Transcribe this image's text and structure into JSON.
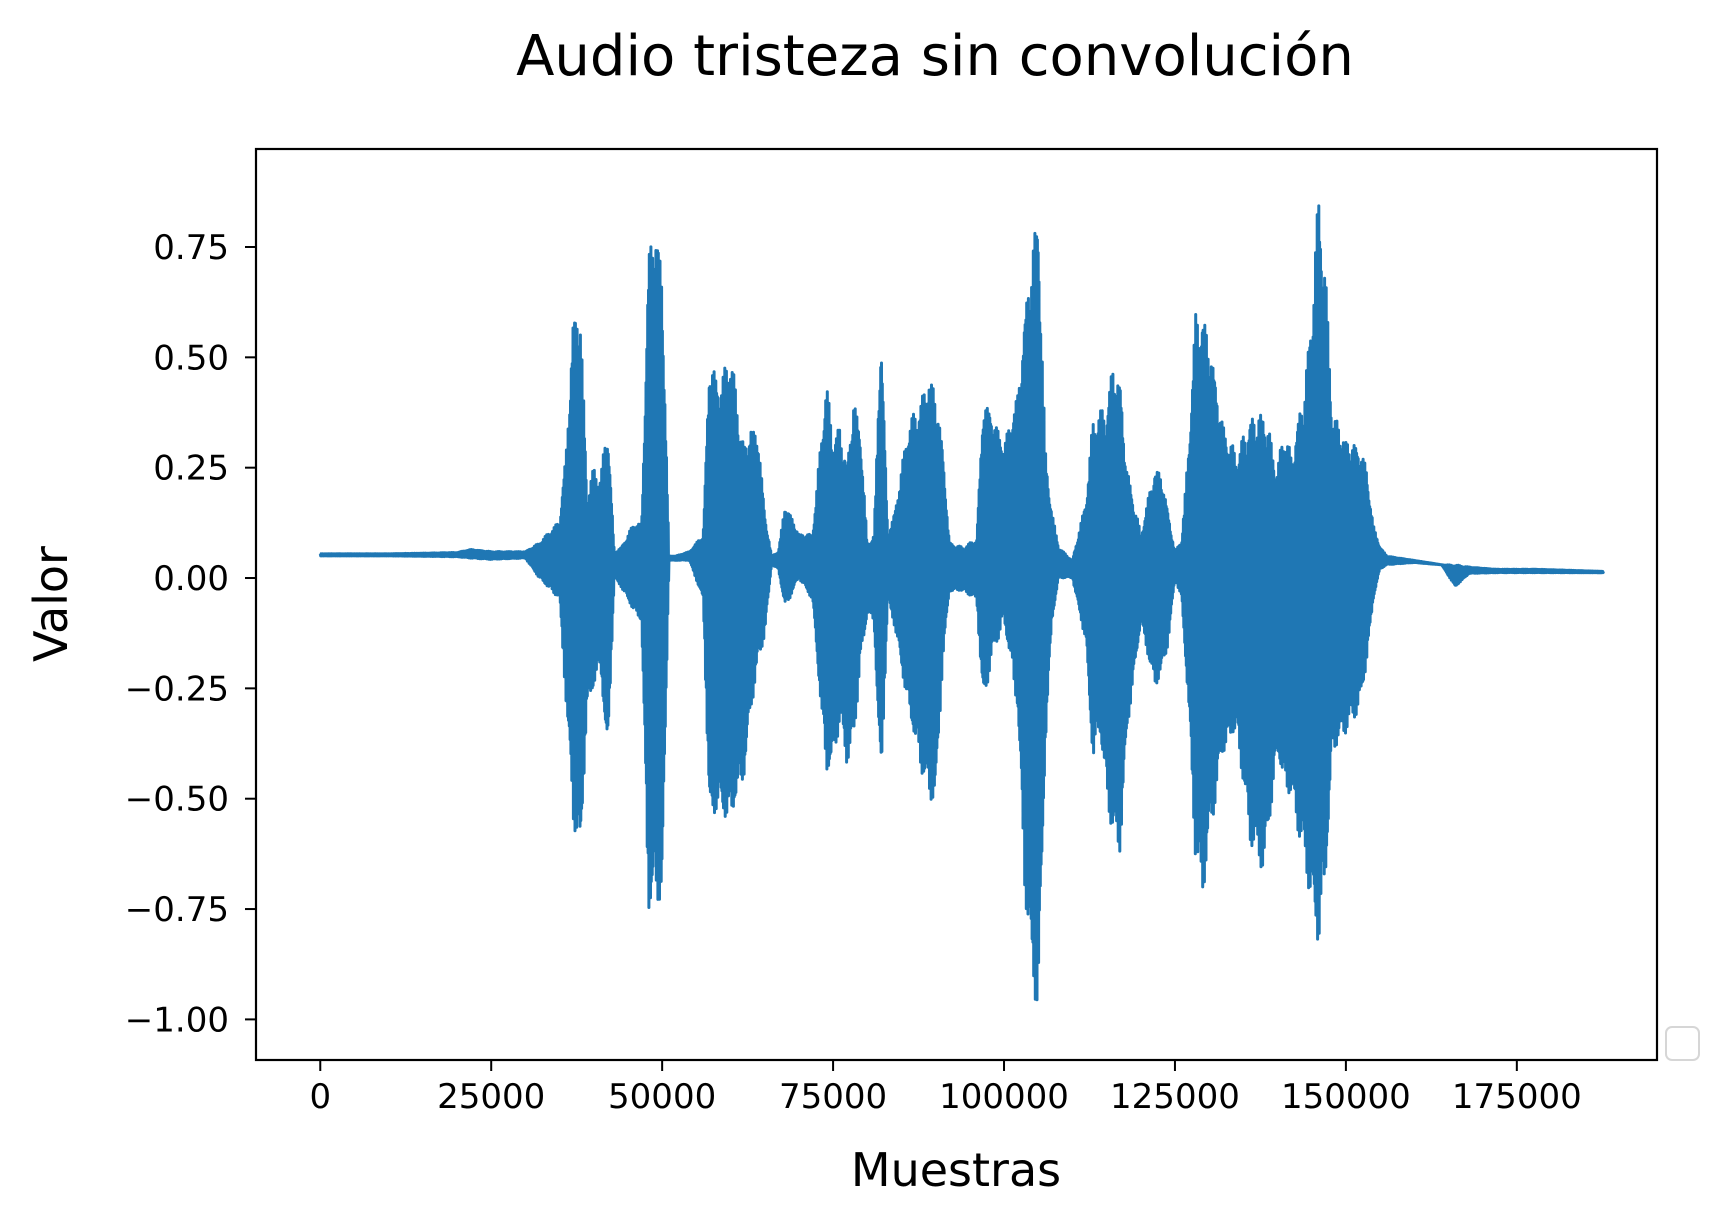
{
  "chart_data": {
    "type": "line",
    "title": "Audio tristeza sin convolución",
    "xlabel": "Muestras",
    "ylabel": "Valor",
    "xlim": [
      -9400,
      195500
    ],
    "ylim": [
      -1.092,
      0.972
    ],
    "xticks": [
      0,
      25000,
      50000,
      75000,
      100000,
      125000,
      150000,
      175000
    ],
    "xtick_labels": [
      "0",
      "25000",
      "50000",
      "75000",
      "100000",
      "125000",
      "150000",
      "175000"
    ],
    "yticks": [
      0.75,
      0.5,
      0.25,
      0.0,
      -0.25,
      -0.5,
      -0.75,
      -1.0
    ],
    "ytick_labels": [
      "0.75",
      "0.50",
      "0.25",
      "0.00",
      "−0.25",
      "−0.50",
      "−0.75",
      "−1.00"
    ],
    "grid": false,
    "legend": "empty box at lower-right",
    "line_color": "#1f77b4",
    "series": [
      {
        "x": [
          0,
          10000,
          20000,
          22000,
          25000,
          30000,
          32000,
          35000,
          36000,
          37000,
          38000,
          39000,
          40000,
          41000,
          42000,
          43000,
          44000,
          46000,
          47000,
          48000,
          49000,
          50000,
          51000,
          52000,
          54000,
          56000,
          57000,
          58000,
          59000,
          60000,
          61000,
          62000,
          63000,
          64000,
          65000,
          66000,
          67000,
          68000,
          70000,
          72000,
          74000,
          75000,
          76000,
          77000,
          78000,
          79000,
          80000,
          81000,
          82000,
          83000,
          84000,
          86000,
          88000,
          89000,
          90000,
          91000,
          92000,
          94000,
          96000,
          97000,
          98000,
          100000,
          102000,
          103000,
          104000,
          105000,
          106000,
          107000,
          108000,
          110000,
          112000,
          113000,
          114000,
          115000,
          116000,
          117000,
          118000,
          120000,
          122000,
          123000,
          124000,
          125000,
          126000,
          127000,
          128000,
          129000,
          130000,
          131000,
          132000,
          134000,
          136000,
          138000,
          140000,
          141000,
          142000,
          144000,
          145000,
          146000,
          147000,
          148000,
          150000,
          152000,
          153000,
          154000,
          155000,
          156000,
          160000,
          164000,
          166000,
          168000,
          172000,
          178000,
          182000,
          187700
        ],
        "upper": [
          0.055,
          0.055,
          0.058,
          0.065,
          0.06,
          0.06,
          0.08,
          0.13,
          0.3,
          0.6,
          0.63,
          0.2,
          0.25,
          0.23,
          0.36,
          0.06,
          0.07,
          0.13,
          0.12,
          0.73,
          0.83,
          0.7,
          0.05,
          0.05,
          0.06,
          0.1,
          0.53,
          0.45,
          0.47,
          0.52,
          0.4,
          0.3,
          0.35,
          0.33,
          0.15,
          0.05,
          0.06,
          0.17,
          0.1,
          0.1,
          0.45,
          0.32,
          0.35,
          0.26,
          0.41,
          0.33,
          0.08,
          0.1,
          0.58,
          0.1,
          0.15,
          0.35,
          0.41,
          0.47,
          0.43,
          0.3,
          0.08,
          0.07,
          0.09,
          0.41,
          0.38,
          0.3,
          0.42,
          0.6,
          0.75,
          0.85,
          0.3,
          0.15,
          0.07,
          0.04,
          0.18,
          0.36,
          0.38,
          0.39,
          0.5,
          0.45,
          0.25,
          0.1,
          0.25,
          0.24,
          0.15,
          0.06,
          0.09,
          0.3,
          0.6,
          0.61,
          0.55,
          0.45,
          0.35,
          0.28,
          0.37,
          0.39,
          0.25,
          0.35,
          0.28,
          0.45,
          0.62,
          0.88,
          0.7,
          0.38,
          0.32,
          0.3,
          0.25,
          0.12,
          0.07,
          0.05,
          0.04,
          0.03,
          0.03,
          0.025,
          0.02,
          0.02,
          0.018,
          0.015
        ],
        "lower": [
          0.05,
          0.05,
          0.048,
          0.045,
          0.042,
          0.045,
          0.0,
          -0.05,
          -0.3,
          -0.55,
          -0.65,
          -0.3,
          -0.25,
          -0.2,
          -0.42,
          0.0,
          -0.02,
          -0.08,
          -0.1,
          -0.76,
          -0.74,
          -0.73,
          0.04,
          0.04,
          0.04,
          -0.05,
          -0.58,
          -0.52,
          -0.55,
          -0.56,
          -0.5,
          -0.45,
          -0.3,
          -0.2,
          -0.13,
          0.03,
          0.02,
          -0.07,
          0.0,
          -0.05,
          -0.45,
          -0.42,
          -0.33,
          -0.42,
          -0.38,
          -0.2,
          -0.08,
          -0.1,
          -0.49,
          -0.05,
          -0.11,
          -0.3,
          -0.45,
          -0.5,
          -0.51,
          -0.2,
          -0.03,
          -0.03,
          -0.05,
          -0.3,
          -0.2,
          -0.1,
          -0.3,
          -0.7,
          -0.9,
          -1.0,
          -0.4,
          -0.1,
          0.0,
          0.0,
          -0.15,
          -0.42,
          -0.35,
          -0.5,
          -0.6,
          -0.62,
          -0.35,
          -0.1,
          -0.25,
          -0.22,
          -0.15,
          0.0,
          -0.05,
          -0.3,
          -0.65,
          -0.73,
          -0.6,
          -0.5,
          -0.4,
          -0.35,
          -0.6,
          -0.67,
          -0.4,
          -0.48,
          -0.5,
          -0.65,
          -0.75,
          -0.85,
          -0.7,
          -0.4,
          -0.35,
          -0.3,
          -0.2,
          -0.05,
          0.02,
          0.03,
          0.035,
          0.03,
          -0.02,
          0.01,
          0.012,
          0.012,
          0.012,
          0.012
        ]
      }
    ]
  }
}
